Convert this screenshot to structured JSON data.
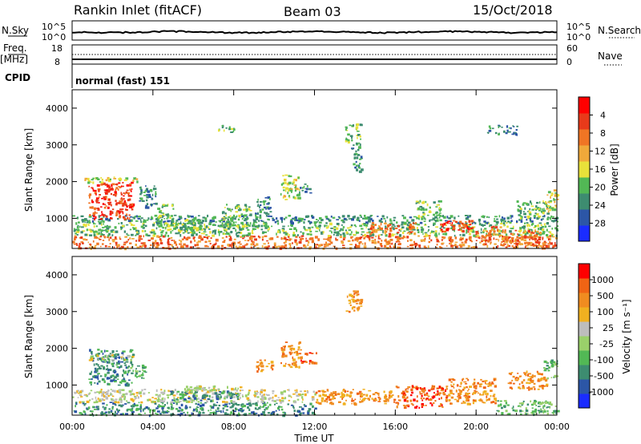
{
  "header": {
    "station": "Rankin Inlet (fitACF)",
    "beam": "Beam 03",
    "date": "15/Oct/2018"
  },
  "top_panels": {
    "nsky_label": "N.Sky",
    "nsky_ticks": [
      "10^5",
      "10^0"
    ],
    "nsearch_label": "N.Search",
    "nsearch_ticks": [
      "10^5",
      "10^0"
    ],
    "freq_label": "Freq.",
    "freq_unit": "[MHz]",
    "freq_ticks": [
      "18",
      "8"
    ],
    "nave_label": "Nave",
    "nave_ticks": [
      "60",
      "0"
    ],
    "cpid_label": "CPID",
    "cpid_text": "normal (fast) 151"
  },
  "chart_data": [
    {
      "type": "heatmap",
      "name": "power",
      "ylabel": "Slant Range [km]",
      "xlabel": "",
      "ylim": [
        180,
        4500
      ],
      "yticks": [
        "1000",
        "2000",
        "3000",
        "4000"
      ],
      "xlim": [
        0,
        24
      ],
      "colorbar_label": "Power [dB]",
      "colorbar_ticks": [
        "4",
        "8",
        "12",
        "16",
        "20",
        "24",
        "28"
      ],
      "colors": [
        "#1a2cff",
        "#2c56a6",
        "#3d8c70",
        "#52b855",
        "#e8e13a",
        "#f0a93a",
        "#f07524",
        "#e83a1a",
        "#ff0000"
      ],
      "regions": [
        {
          "t": [
            0.0,
            24.0
          ],
          "r": [
            200,
            550
          ],
          "level": 6
        },
        {
          "t": [
            0.0,
            24.0
          ],
          "r": [
            550,
            900
          ],
          "level": 3
        },
        {
          "t": [
            0.0,
            24.0
          ],
          "r": [
            900,
            1100
          ],
          "level": 2
        },
        {
          "t": [
            0.8,
            3.0
          ],
          "r": [
            1000,
            2000
          ],
          "level": 7
        },
        {
          "t": [
            0.5,
            3.2
          ],
          "r": [
            2000,
            2150
          ],
          "level": 4
        },
        {
          "t": [
            3.3,
            4.2
          ],
          "r": [
            1300,
            1900
          ],
          "level": 2
        },
        {
          "t": [
            4.2,
            5.0
          ],
          "r": [
            800,
            1400
          ],
          "level": 3
        },
        {
          "t": [
            5.3,
            6.4
          ],
          "r": [
            700,
            1050
          ],
          "level": 3
        },
        {
          "t": [
            7.2,
            8.1
          ],
          "r": [
            3350,
            3550
          ],
          "level": 3
        },
        {
          "t": [
            7.4,
            8.8
          ],
          "r": [
            800,
            1400
          ],
          "level": 3
        },
        {
          "t": [
            9.0,
            9.8
          ],
          "r": [
            1100,
            1600
          ],
          "level": 2
        },
        {
          "t": [
            10.3,
            11.3
          ],
          "r": [
            1500,
            2200
          ],
          "level": 4
        },
        {
          "t": [
            11.2,
            11.8
          ],
          "r": [
            1700,
            1950
          ],
          "level": 2
        },
        {
          "t": [
            13.5,
            14.3
          ],
          "r": [
            3000,
            3600
          ],
          "level": 3
        },
        {
          "t": [
            13.8,
            14.3
          ],
          "r": [
            2300,
            3000
          ],
          "level": 2
        },
        {
          "t": [
            14.5,
            17.0
          ],
          "r": [
            600,
            900
          ],
          "level": 6
        },
        {
          "t": [
            17.0,
            18.2
          ],
          "r": [
            1000,
            1500
          ],
          "level": 3
        },
        {
          "t": [
            18.2,
            19.8
          ],
          "r": [
            650,
            1000
          ],
          "level": 7
        },
        {
          "t": [
            19.9,
            21.2
          ],
          "r": [
            500,
            800
          ],
          "level": 6
        },
        {
          "t": [
            21.2,
            23.3
          ],
          "r": [
            300,
            700
          ],
          "level": 6
        },
        {
          "t": [
            22.0,
            23.6
          ],
          "r": [
            1000,
            1500
          ],
          "level": 3
        },
        {
          "t": [
            23.3,
            24.0
          ],
          "r": [
            1200,
            1800
          ],
          "level": 4
        },
        {
          "t": [
            20.5,
            22.0
          ],
          "r": [
            3300,
            3550
          ],
          "level": 2
        }
      ]
    },
    {
      "type": "heatmap",
      "name": "velocity",
      "ylabel": "Slant Range [km]",
      "xlabel": "Time UT",
      "ylim": [
        180,
        4500
      ],
      "yticks": [
        "1000",
        "2000",
        "3000",
        "4000"
      ],
      "xlim": [
        0,
        24
      ],
      "xticks": [
        "00:00",
        "04:00",
        "08:00",
        "12:00",
        "16:00",
        "20:00",
        "00:00"
      ],
      "colorbar_label": "Velocity [m s⁻¹]",
      "colorbar_ticks": [
        "1000",
        "500",
        "100",
        "25",
        "-25",
        "-100",
        "-500",
        "-1000"
      ],
      "colors": [
        "#1a2cff",
        "#2c56a6",
        "#3d8c70",
        "#52b855",
        "#9ad06a",
        "#bdbdbd",
        "#f0b020",
        "#f08c20",
        "#f06414",
        "#ff0000"
      ],
      "regions": [
        {
          "t": [
            0.0,
            12.0
          ],
          "r": [
            200,
            550
          ],
          "level": 2
        },
        {
          "t": [
            0.0,
            12.0
          ],
          "r": [
            550,
            900
          ],
          "level": 5
        },
        {
          "t": [
            0.8,
            3.0
          ],
          "r": [
            1000,
            2000
          ],
          "level": 2
        },
        {
          "t": [
            0.8,
            3.0
          ],
          "r": [
            1700,
            1850
          ],
          "level": 5
        },
        {
          "t": [
            2.8,
            3.6
          ],
          "r": [
            1200,
            1600
          ],
          "level": 3
        },
        {
          "t": [
            4.8,
            8.2
          ],
          "r": [
            600,
            850
          ],
          "level": 2
        },
        {
          "t": [
            5.5,
            8.5
          ],
          "r": [
            850,
            1000
          ],
          "level": 5
        },
        {
          "t": [
            9.0,
            9.9
          ],
          "r": [
            1400,
            1700
          ],
          "level": 7
        },
        {
          "t": [
            10.3,
            11.3
          ],
          "r": [
            1500,
            2200
          ],
          "level": 7
        },
        {
          "t": [
            11.3,
            12.1
          ],
          "r": [
            1600,
            1900
          ],
          "level": 8
        },
        {
          "t": [
            12.0,
            16.0
          ],
          "r": [
            500,
            900
          ],
          "level": 7
        },
        {
          "t": [
            13.5,
            14.3
          ],
          "r": [
            3000,
            3600
          ],
          "level": 7
        },
        {
          "t": [
            16.0,
            18.5
          ],
          "r": [
            400,
            1000
          ],
          "level": 8
        },
        {
          "t": [
            18.5,
            21.0
          ],
          "r": [
            500,
            1200
          ],
          "level": 7
        },
        {
          "t": [
            21.0,
            24.0
          ],
          "r": [
            200,
            600
          ],
          "level": 3
        },
        {
          "t": [
            21.5,
            23.5
          ],
          "r": [
            900,
            1400
          ],
          "level": 7
        },
        {
          "t": [
            23.3,
            24.0
          ],
          "r": [
            1200,
            1700
          ],
          "level": 3
        }
      ]
    }
  ]
}
